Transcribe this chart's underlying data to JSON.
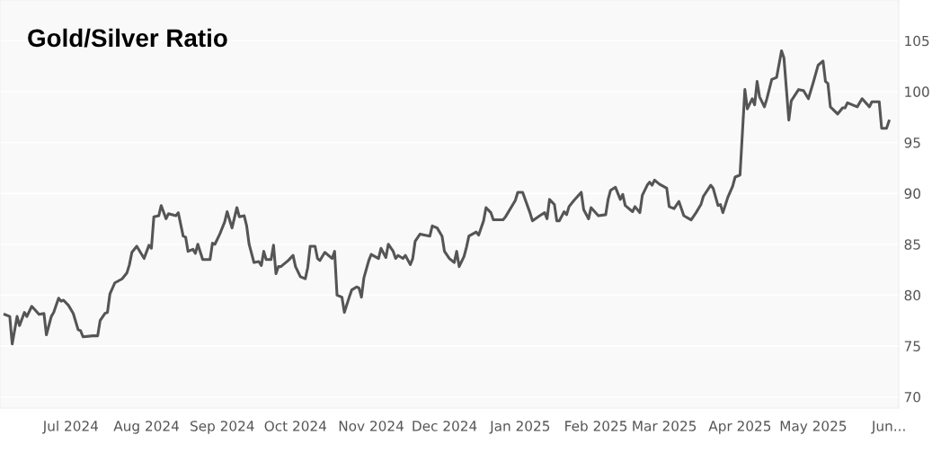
{
  "chart_data": {
    "type": "line",
    "title": "Gold/Silver Ratio",
    "x": [
      "2024-06-04",
      "2024-06-06",
      "2024-06-07",
      "2024-06-09",
      "2024-06-10",
      "2024-06-12",
      "2024-06-13",
      "2024-06-15",
      "2024-06-18",
      "2024-06-20",
      "2024-06-21",
      "2024-06-23",
      "2024-06-24",
      "2024-06-26",
      "2024-06-27",
      "2024-06-28",
      "2024-06-30",
      "2024-07-02",
      "2024-07-04",
      "2024-07-05",
      "2024-07-06",
      "2024-07-10",
      "2024-07-12",
      "2024-07-13",
      "2024-07-15",
      "2024-07-16",
      "2024-07-17",
      "2024-07-19",
      "2024-07-22",
      "2024-07-24",
      "2024-07-25",
      "2024-07-26",
      "2024-07-28",
      "2024-07-29",
      "2024-07-31",
      "2024-08-02",
      "2024-08-03",
      "2024-08-04",
      "2024-08-06",
      "2024-08-07",
      "2024-08-09",
      "2024-08-10",
      "2024-08-13",
      "2024-08-14",
      "2024-08-16",
      "2024-08-17",
      "2024-08-18",
      "2024-08-20",
      "2024-08-21",
      "2024-08-22",
      "2024-08-24",
      "2024-08-27",
      "2024-08-28",
      "2024-08-29",
      "2024-08-31",
      "2024-09-02",
      "2024-09-03",
      "2024-09-05",
      "2024-09-07",
      "2024-09-08",
      "2024-09-10",
      "2024-09-11",
      "2024-09-12",
      "2024-09-14",
      "2024-09-16",
      "2024-09-17",
      "2024-09-18",
      "2024-09-19",
      "2024-09-21",
      "2024-09-22",
      "2024-09-23",
      "2024-09-24",
      "2024-09-25",
      "2024-09-28",
      "2024-09-30",
      "2024-10-01",
      "2024-10-03",
      "2024-10-05",
      "2024-10-06",
      "2024-10-07",
      "2024-10-09",
      "2024-10-10",
      "2024-10-11",
      "2024-10-13",
      "2024-10-16",
      "2024-10-17",
      "2024-10-18",
      "2024-10-20",
      "2024-10-21",
      "2024-10-23",
      "2024-10-24",
      "2024-10-26",
      "2024-10-27",
      "2024-10-28",
      "2024-10-29",
      "2024-10-31",
      "2024-11-01",
      "2024-11-04",
      "2024-11-05",
      "2024-11-07",
      "2024-11-08",
      "2024-11-10",
      "2024-11-11",
      "2024-11-12",
      "2024-11-14",
      "2024-11-15",
      "2024-11-17",
      "2024-11-18",
      "2024-11-19",
      "2024-11-21",
      "2024-11-25",
      "2024-11-26",
      "2024-11-28",
      "2024-11-30",
      "2024-12-01",
      "2024-12-03",
      "2024-12-05",
      "2024-12-06",
      "2024-12-07",
      "2024-12-09",
      "2024-12-10",
      "2024-12-11",
      "2024-12-14",
      "2024-12-15",
      "2024-12-17",
      "2024-12-18",
      "2024-12-20",
      "2024-12-21",
      "2024-12-25",
      "2024-12-26",
      "2024-12-30",
      "2024-12-31",
      "2025-01-02",
      "2025-01-05",
      "2025-01-06",
      "2025-01-09",
      "2025-01-11",
      "2025-01-12",
      "2025-01-13",
      "2025-01-15",
      "2025-01-16",
      "2025-01-17",
      "2025-01-19",
      "2025-01-20",
      "2025-01-21",
      "2025-01-23",
      "2025-01-26",
      "2025-01-27",
      "2025-01-29",
      "2025-01-30",
      "2025-02-02",
      "2025-02-05",
      "2025-02-06",
      "2025-02-07",
      "2025-02-09",
      "2025-02-11",
      "2025-02-12",
      "2025-02-13",
      "2025-02-16",
      "2025-02-17",
      "2025-02-19",
      "2025-02-20",
      "2025-02-22",
      "2025-02-23",
      "2025-02-24",
      "2025-02-25",
      "2025-02-27",
      "2025-03-02",
      "2025-03-03",
      "2025-03-05",
      "2025-03-07",
      "2025-03-09",
      "2025-03-12",
      "2025-03-14",
      "2025-03-16",
      "2025-03-17",
      "2025-03-20",
      "2025-03-21",
      "2025-03-23",
      "2025-03-24",
      "2025-03-25",
      "2025-03-27",
      "2025-03-29",
      "2025-03-30",
      "2025-04-01",
      "2025-04-03",
      "2025-04-04",
      "2025-04-06",
      "2025-04-07",
      "2025-04-08",
      "2025-04-09",
      "2025-04-11",
      "2025-04-12",
      "2025-04-14",
      "2025-04-16",
      "2025-04-18",
      "2025-04-19",
      "2025-04-21",
      "2025-04-22",
      "2025-04-25",
      "2025-04-27",
      "2025-04-29",
      "2025-05-01",
      "2025-05-03",
      "2025-05-05",
      "2025-05-06",
      "2025-05-07",
      "2025-05-08",
      "2025-05-11",
      "2025-05-13",
      "2025-05-14",
      "2025-05-15",
      "2025-05-19",
      "2025-05-21",
      "2025-05-24",
      "2025-05-25",
      "2025-05-28",
      "2025-05-29",
      "2025-05-31",
      "2025-06-01"
    ],
    "series": [
      {
        "color": "#555555",
        "values": [
          78.1,
          77.9,
          75.2,
          77.9,
          77.0,
          78.3,
          77.9,
          78.9,
          78.1,
          78.2,
          76.1,
          77.9,
          78.3,
          79.7,
          79.4,
          79.5,
          79.0,
          78.2,
          76.6,
          76.5,
          75.9,
          76.0,
          76.0,
          77.5,
          78.2,
          78.3,
          80.1,
          81.2,
          81.6,
          82.2,
          83.0,
          84.2,
          84.8,
          84.4,
          83.6,
          84.9,
          84.6,
          87.7,
          87.8,
          88.8,
          87.5,
          88.0,
          87.8,
          88.1,
          85.8,
          85.7,
          84.3,
          84.5,
          84.1,
          85.0,
          83.5,
          83.5,
          85.1,
          85.0,
          86.0,
          87.2,
          88.2,
          86.6,
          88.6,
          87.7,
          87.8,
          86.8,
          85.0,
          83.2,
          83.3,
          82.9,
          84.3,
          83.5,
          83.5,
          84.9,
          82.1,
          82.8,
          82.8,
          83.4,
          83.9,
          82.8,
          81.8,
          81.6,
          82.7,
          84.8,
          84.8,
          83.6,
          83.4,
          84.2,
          83.6,
          84.3,
          80.0,
          79.8,
          78.3,
          79.8,
          80.5,
          80.8,
          80.7,
          79.8,
          81.7,
          83.4,
          84.0,
          83.6,
          84.6,
          83.7,
          85.0,
          84.3,
          83.6,
          83.9,
          83.6,
          83.9,
          83.0,
          83.6,
          85.3,
          86.0,
          85.8,
          86.8,
          86.6,
          85.8,
          84.3,
          83.6,
          83.2,
          84.3,
          82.8,
          83.8,
          84.7,
          85.8,
          86.2,
          85.9,
          87.3,
          88.6,
          88.1,
          87.4,
          87.4,
          87.7,
          89.3,
          90.1,
          90.1,
          88.1,
          87.3,
          87.8,
          88.1,
          87.5,
          89.4,
          88.9,
          87.3,
          87.3,
          88.2,
          87.9,
          88.7,
          89.3,
          90.1,
          88.4,
          87.5,
          88.6,
          87.8,
          87.9,
          89.4,
          90.3,
          90.6,
          89.4,
          89.9,
          88.8,
          88.2,
          88.7,
          88.1,
          89.8,
          90.8,
          91.1,
          90.8,
          91.3,
          90.9,
          90.5,
          88.7,
          88.5,
          89.2,
          87.8,
          87.4,
          88.1,
          88.9,
          89.7,
          90.8,
          90.5,
          88.8,
          88.9,
          88.1,
          89.6,
          90.7,
          91.6,
          91.8,
          100.2,
          98.3,
          99.3,
          98.7,
          101.0,
          99.5,
          98.5,
          99.3,
          101.2,
          101.4,
          104.0,
          103.3,
          97.2,
          99.1,
          100.2,
          100.1,
          99.3,
          100.9,
          102.6,
          103.0,
          101.0,
          100.8,
          98.5,
          97.8,
          98.4,
          98.4,
          98.9,
          98.5,
          99.3,
          98.5,
          99.0,
          99.0,
          96.4,
          96.4,
          97.1
        ]
      }
    ],
    "xlim": [
      "2024-06-02",
      "2025-06-05"
    ],
    "xticks": [
      {
        "value": "2024-07-01",
        "label": "Jul 2024"
      },
      {
        "value": "2024-08-01",
        "label": "Aug 2024"
      },
      {
        "value": "2024-09-01",
        "label": "Sep 2024"
      },
      {
        "value": "2024-10-01",
        "label": "Oct 2024"
      },
      {
        "value": "2024-11-01",
        "label": "Nov 2024"
      },
      {
        "value": "2024-12-01",
        "label": "Dec 2024"
      },
      {
        "value": "2025-01-01",
        "label": "Jan 2025"
      },
      {
        "value": "2025-02-01",
        "label": "Feb 2025"
      },
      {
        "value": "2025-03-01",
        "label": "Mar 2025"
      },
      {
        "value": "2025-04-01",
        "label": "Apr 2025"
      },
      {
        "value": "2025-05-01",
        "label": "May 2025"
      },
      {
        "value": "2025-06-01",
        "label": "Jun..."
      }
    ],
    "ylim": [
      68.9,
      109.0
    ],
    "yticks": [
      70,
      75,
      80,
      85,
      90,
      95,
      100,
      105
    ],
    "grid": "y"
  }
}
